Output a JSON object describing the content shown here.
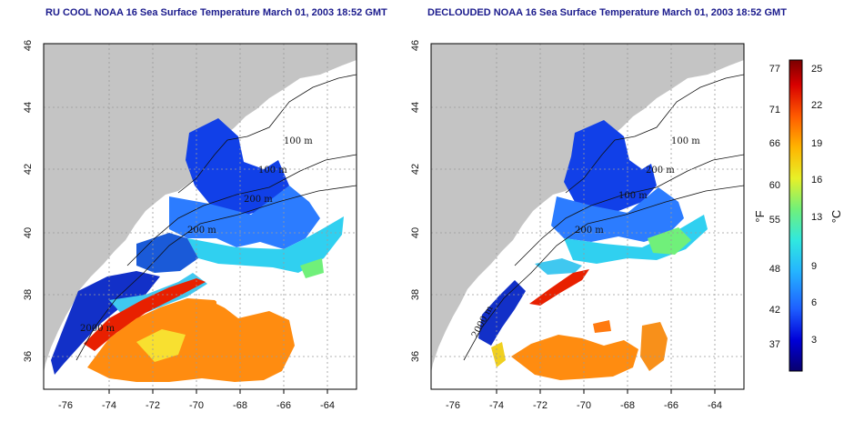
{
  "panels": [
    {
      "title": "RU COOL NOAA 16 Sea Surface Temperature March 01, 2003 18:52 GMT",
      "contour_labels": [
        "100 m",
        "100 m",
        "200 m",
        "200 m",
        "2000 m"
      ]
    },
    {
      "title": "DECLOUDED NOAA 16 Sea Surface Temperature March 01, 2003 18:52 GMT",
      "contour_labels": [
        "100 m",
        "200 m",
        "100 m",
        "200 m",
        "2000 m"
      ]
    }
  ],
  "axes": {
    "x_ticks": [
      "-76",
      "-74",
      "-72",
      "-70",
      "-68",
      "-66",
      "-64"
    ],
    "y_ticks": [
      "36",
      "38",
      "40",
      "42",
      "44",
      "46"
    ],
    "x_range": [
      -77.2,
      -62.8
    ],
    "y_range": [
      35.0,
      46.0
    ]
  },
  "colorbar": {
    "f_unit": "°F",
    "c_unit": "°C",
    "f_ticks": [
      "77",
      "71",
      "66",
      "60",
      "55",
      "48",
      "42",
      "37"
    ],
    "c_ticks": [
      "25",
      "22",
      "19",
      "16",
      "13",
      "9",
      "6",
      "3"
    ],
    "range_c": [
      0,
      26
    ]
  },
  "colors": {
    "land": "#c4c4c4",
    "ocean_clouds": "#ffffff",
    "title": "#1a1a8c",
    "grid": "#9a9a9a",
    "scale": [
      "#08006e",
      "#0000d8",
      "#1e5fff",
      "#25b4ff",
      "#30e8e0",
      "#70f07a",
      "#e8f028",
      "#ffb400",
      "#ff5a00",
      "#d80000",
      "#7a0000"
    ]
  }
}
